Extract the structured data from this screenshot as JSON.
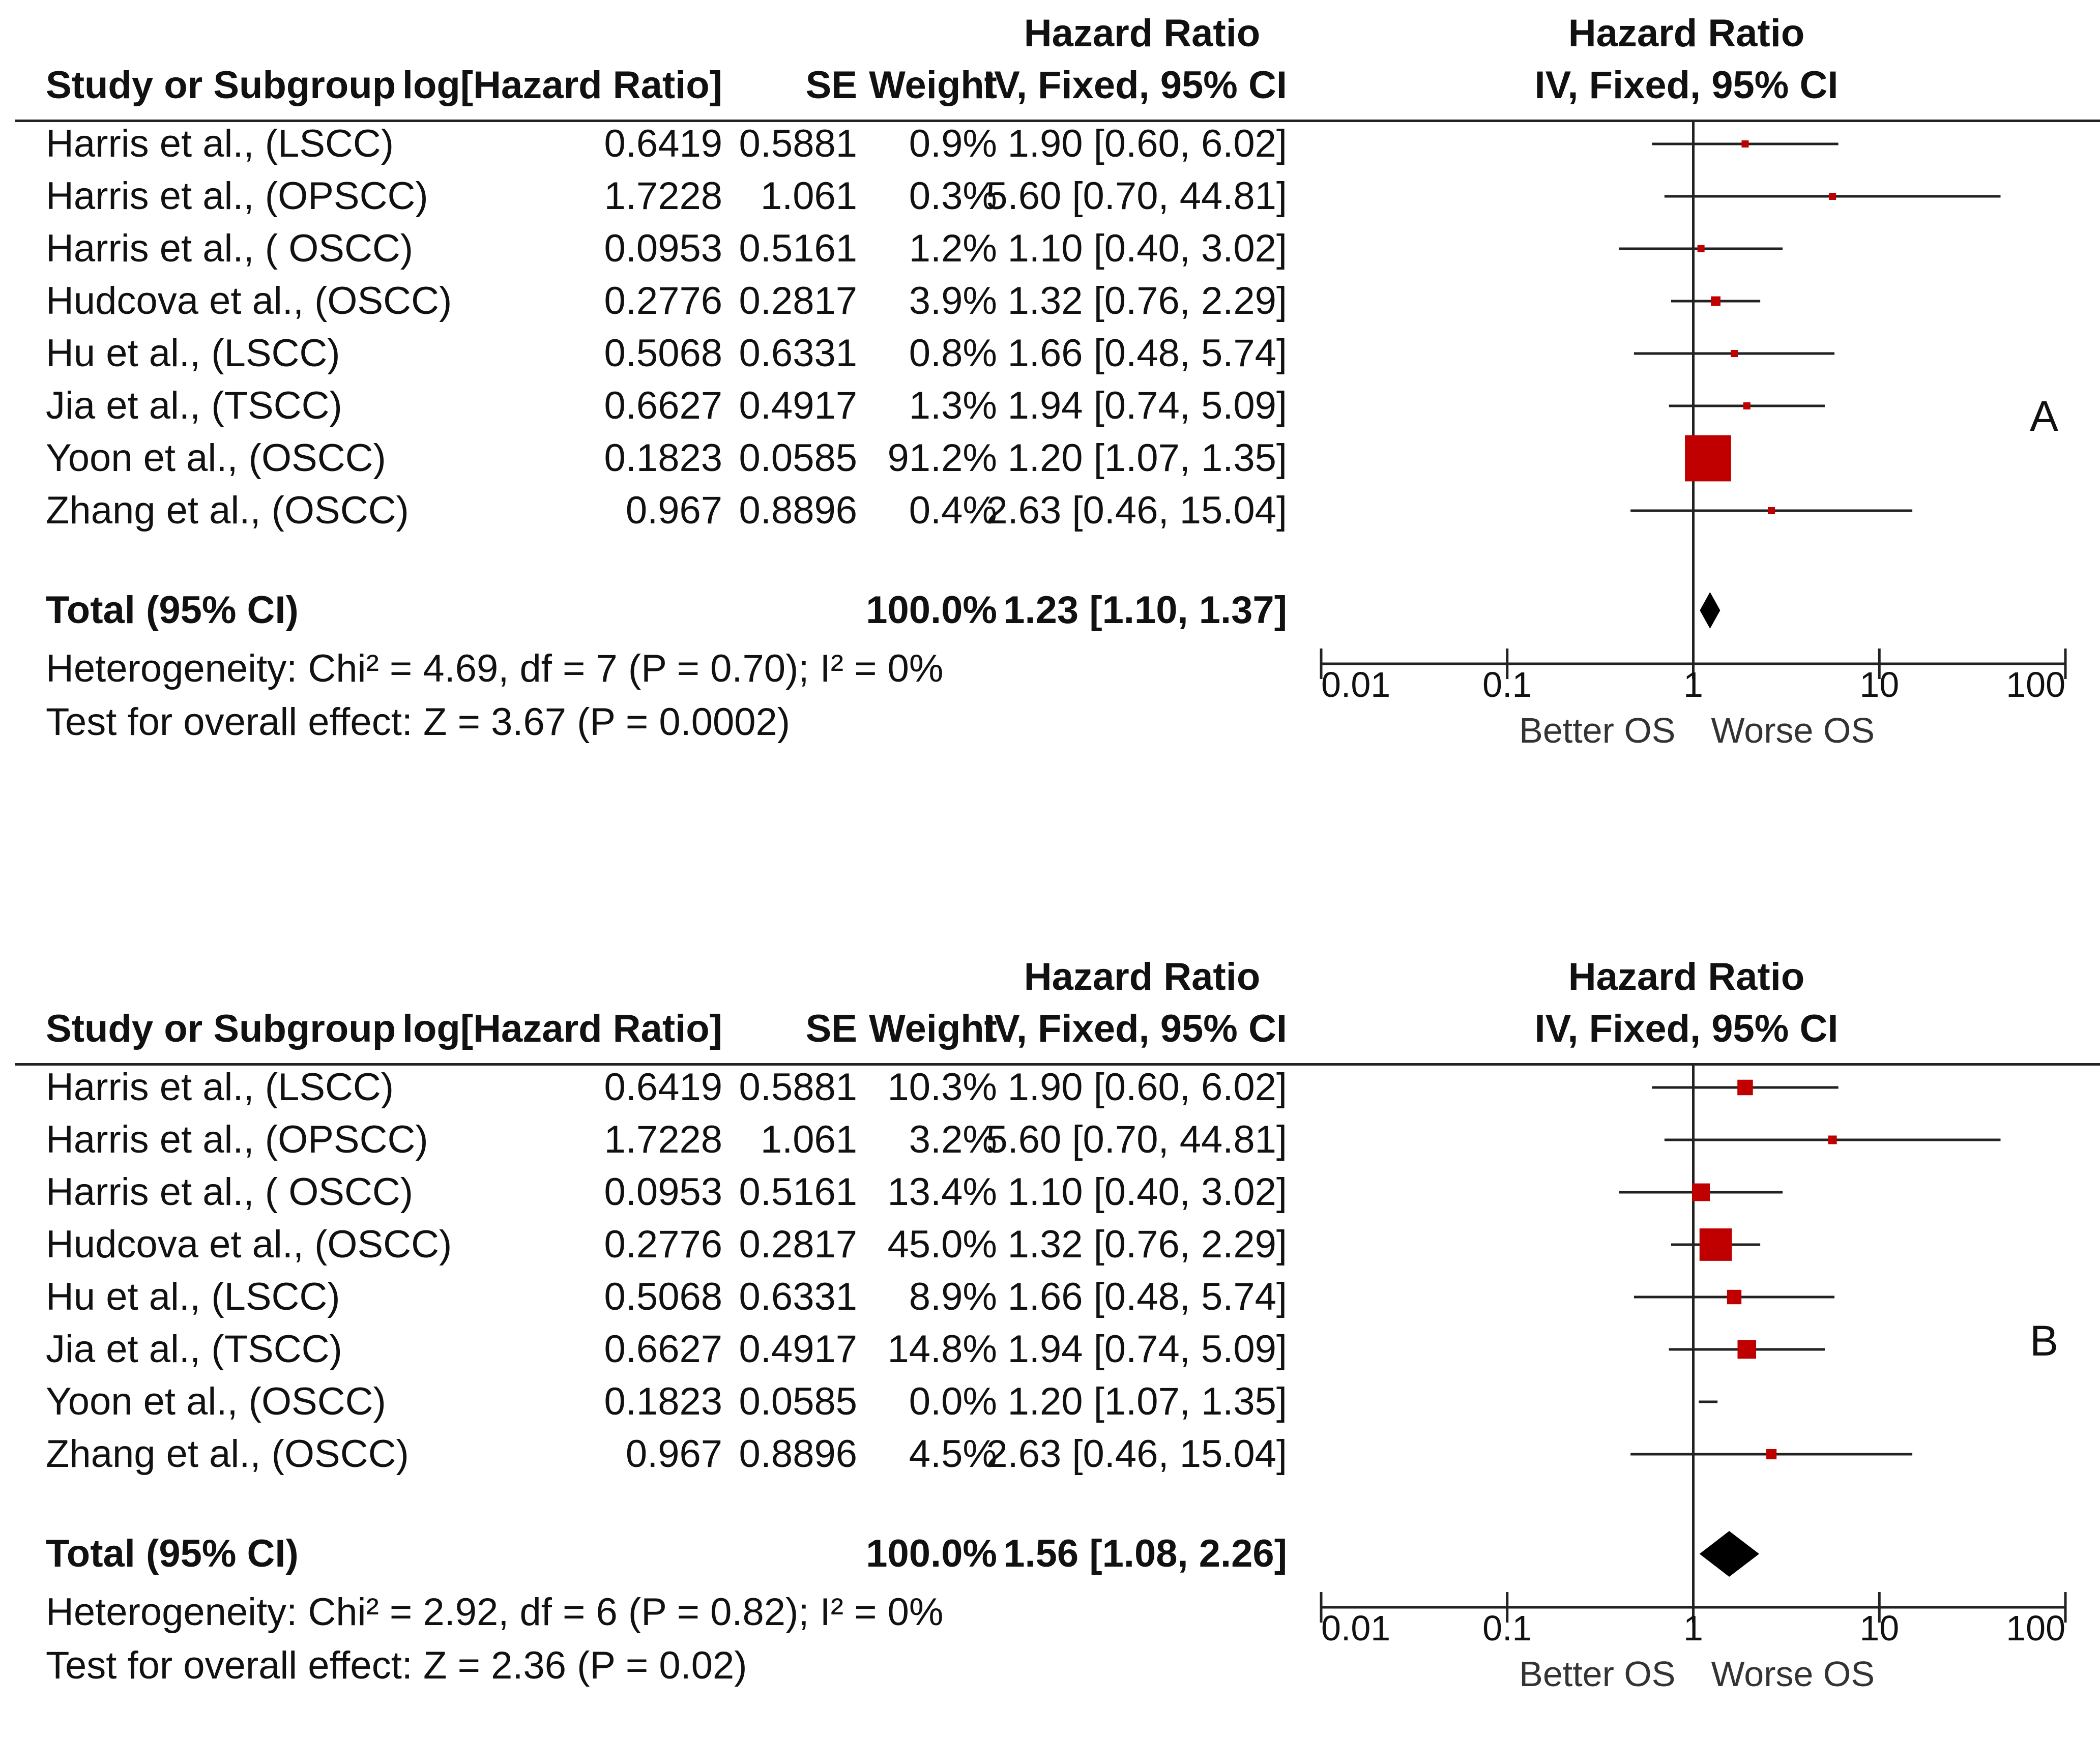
{
  "panels": [
    {
      "letter": "A",
      "header": {
        "hr_group_left": "Hazard Ratio",
        "hr_group_right": "Hazard Ratio",
        "study": "Study or Subgroup",
        "loghr": "log[Hazard Ratio]",
        "se": "SE",
        "weight": "Weight",
        "ci": "IV, Fixed, 95% CI",
        "plot_ci": "IV, Fixed, 95% CI"
      },
      "rows": [
        {
          "study": "Harris et al., (LSCC)",
          "loghr": "0.6419",
          "se": "0.5881",
          "weight": "0.9%",
          "ci": "1.90 [0.60, 6.02]"
        },
        {
          "study": "Harris et al., (OPSCC)",
          "loghr": "1.7228",
          "se": "1.061",
          "weight": "0.3%",
          "ci": "5.60 [0.70, 44.81]"
        },
        {
          "study": "Harris et al., ( OSCC)",
          "loghr": "0.0953",
          "se": "0.5161",
          "weight": "1.2%",
          "ci": "1.10 [0.40, 3.02]"
        },
        {
          "study": "Hudcova et al., (OSCC)",
          "loghr": "0.2776",
          "se": "0.2817",
          "weight": "3.9%",
          "ci": "1.32 [0.76, 2.29]"
        },
        {
          "study": "Hu et al., (LSCC)",
          "loghr": "0.5068",
          "se": "0.6331",
          "weight": "0.8%",
          "ci": "1.66 [0.48, 5.74]"
        },
        {
          "study": "Jia et al., (TSCC)",
          "loghr": "0.6627",
          "se": "0.4917",
          "weight": "1.3%",
          "ci": "1.94 [0.74, 5.09]"
        },
        {
          "study": "Yoon et al., (OSCC)",
          "loghr": "0.1823",
          "se": "0.0585",
          "weight": "91.2%",
          "ci": "1.20 [1.07, 1.35]"
        },
        {
          "study": "Zhang et al., (OSCC)",
          "loghr": "0.967",
          "se": "0.8896",
          "weight": "0.4%",
          "ci": "2.63 [0.46, 15.04]"
        }
      ],
      "total": {
        "label": "Total (95% CI)",
        "weight": "100.0%",
        "ci": "1.23 [1.10, 1.37]"
      },
      "heterogeneity": "Heterogeneity: Chi² = 4.69, df = 7 (P = 0.70); I² = 0%",
      "overall": "Test for overall effect: Z = 3.67 (P = 0.0002)",
      "axis_ticks": [
        "0.01",
        "0.1",
        "1",
        "10",
        "100"
      ],
      "favours_left": "Better OS",
      "favours_right": "Worse OS"
    },
    {
      "letter": "B",
      "header": {
        "hr_group_left": "Hazard Ratio",
        "hr_group_right": "Hazard Ratio",
        "study": "Study or Subgroup",
        "loghr": "log[Hazard Ratio]",
        "se": "SE",
        "weight": "Weight",
        "ci": "IV, Fixed, 95% CI",
        "plot_ci": "IV, Fixed, 95% CI"
      },
      "rows": [
        {
          "study": "Harris et al., (LSCC)",
          "loghr": "0.6419",
          "se": "0.5881",
          "weight": "10.3%",
          "ci": "1.90 [0.60, 6.02]"
        },
        {
          "study": "Harris et al., (OPSCC)",
          "loghr": "1.7228",
          "se": "1.061",
          "weight": "3.2%",
          "ci": "5.60 [0.70, 44.81]"
        },
        {
          "study": "Harris et al., ( OSCC)",
          "loghr": "0.0953",
          "se": "0.5161",
          "weight": "13.4%",
          "ci": "1.10 [0.40, 3.02]"
        },
        {
          "study": "Hudcova et al., (OSCC)",
          "loghr": "0.2776",
          "se": "0.2817",
          "weight": "45.0%",
          "ci": "1.32 [0.76, 2.29]"
        },
        {
          "study": "Hu et al., (LSCC)",
          "loghr": "0.5068",
          "se": "0.6331",
          "weight": "8.9%",
          "ci": "1.66 [0.48, 5.74]"
        },
        {
          "study": "Jia et al., (TSCC)",
          "loghr": "0.6627",
          "se": "0.4917",
          "weight": "14.8%",
          "ci": "1.94 [0.74, 5.09]"
        },
        {
          "study": "Yoon et al., (OSCC)",
          "loghr": "0.1823",
          "se": "0.0585",
          "weight": "0.0%",
          "ci": "1.20 [1.07, 1.35]"
        },
        {
          "study": "Zhang et al., (OSCC)",
          "loghr": "0.967",
          "se": "0.8896",
          "weight": "4.5%",
          "ci": "2.63 [0.46, 15.04]"
        }
      ],
      "total": {
        "label": "Total (95% CI)",
        "weight": "100.0%",
        "ci": "1.56 [1.08, 2.26]"
      },
      "heterogeneity": "Heterogeneity: Chi² = 2.92, df = 6 (P = 0.82); I² = 0%",
      "overall": "Test for overall effect: Z = 2.36 (P = 0.02)",
      "axis_ticks": [
        "0.01",
        "0.1",
        "1",
        "10",
        "100"
      ],
      "favours_left": "Better OS",
      "favours_right": "Worse OS"
    }
  ],
  "colors": {
    "marker": "#c00000",
    "line": "#222222",
    "diamond": "#000000"
  },
  "chart_data": [
    {
      "type": "forest",
      "title": "A",
      "xscale": "log",
      "xlim": [
        0.01,
        100
      ],
      "xticks": [
        0.01,
        0.1,
        1,
        10,
        100
      ],
      "series": [
        {
          "name": "IV, Fixed, 95% CI",
          "points": [
            {
              "hr": 1.9,
              "lo": 0.6,
              "hi": 6.02,
              "weight": 0.9
            },
            {
              "hr": 5.6,
              "lo": 0.7,
              "hi": 44.81,
              "weight": 0.3
            },
            {
              "hr": 1.1,
              "lo": 0.4,
              "hi": 3.02,
              "weight": 1.2
            },
            {
              "hr": 1.32,
              "lo": 0.76,
              "hi": 2.29,
              "weight": 3.9
            },
            {
              "hr": 1.66,
              "lo": 0.48,
              "hi": 5.74,
              "weight": 0.8
            },
            {
              "hr": 1.94,
              "lo": 0.74,
              "hi": 5.09,
              "weight": 1.3
            },
            {
              "hr": 1.2,
              "lo": 1.07,
              "hi": 1.35,
              "weight": 91.2
            },
            {
              "hr": 2.63,
              "lo": 0.46,
              "hi": 15.04,
              "weight": 0.4
            }
          ],
          "total": {
            "hr": 1.23,
            "lo": 1.1,
            "hi": 1.37
          }
        }
      ]
    },
    {
      "type": "forest",
      "title": "B",
      "xscale": "log",
      "xlim": [
        0.01,
        100
      ],
      "xticks": [
        0.01,
        0.1,
        1,
        10,
        100
      ],
      "series": [
        {
          "name": "IV, Fixed, 95% CI",
          "points": [
            {
              "hr": 1.9,
              "lo": 0.6,
              "hi": 6.02,
              "weight": 10.3
            },
            {
              "hr": 5.6,
              "lo": 0.7,
              "hi": 44.81,
              "weight": 3.2
            },
            {
              "hr": 1.1,
              "lo": 0.4,
              "hi": 3.02,
              "weight": 13.4
            },
            {
              "hr": 1.32,
              "lo": 0.76,
              "hi": 2.29,
              "weight": 45.0
            },
            {
              "hr": 1.66,
              "lo": 0.48,
              "hi": 5.74,
              "weight": 8.9
            },
            {
              "hr": 1.94,
              "lo": 0.74,
              "hi": 5.09,
              "weight": 14.8
            },
            {
              "hr": 1.2,
              "lo": 1.07,
              "hi": 1.35,
              "weight": 0.0
            },
            {
              "hr": 2.63,
              "lo": 0.46,
              "hi": 15.04,
              "weight": 4.5
            }
          ],
          "total": {
            "hr": 1.56,
            "lo": 1.08,
            "hi": 2.26
          }
        }
      ]
    }
  ]
}
